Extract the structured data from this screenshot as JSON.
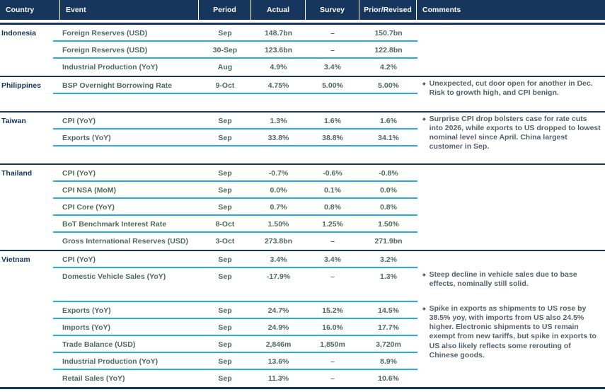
{
  "colors": {
    "navy": "#17365D",
    "cyan": "#29ABE2",
    "data_text": "#4E6A60",
    "comment_text": "#58606A",
    "header_text": "#FFFFFF"
  },
  "icons": {
    "bullet": "◆"
  },
  "header": {
    "columns": [
      {
        "label": "Country"
      },
      {
        "label": "Event"
      },
      {
        "label": "Period"
      },
      {
        "label": "Actual"
      },
      {
        "label": "Survey"
      },
      {
        "label": "Prior/Revised"
      },
      {
        "label": "Comments"
      }
    ]
  },
  "sections": [
    {
      "country": "Indonesia",
      "rows": [
        {
          "event": "Foreign Reserves (USD)",
          "period": "Sep",
          "actual": "148.7bn",
          "survey": "–",
          "prior": "150.7bn"
        },
        {
          "event": "Foreign Reserves (USD)",
          "period": "30-Sep",
          "actual": "123.6bn",
          "survey": "–",
          "prior": "122.8bn"
        },
        {
          "event": "Industrial Production (YoY)",
          "period": "Aug",
          "actual": "4.9%",
          "survey": "3.4%",
          "prior": "4.2%"
        }
      ]
    },
    {
      "country": "Philippines",
      "rows": [
        {
          "event": "BSP Overnight Borrowing Rate",
          "period": "9-Oct",
          "actual": "4.75%",
          "survey": "5.00%",
          "prior": "5.00%",
          "comment": "Unexpected, cut door open for another in Dec. Risk to growth high, and CPI benign."
        }
      ]
    },
    {
      "country": "Taiwan",
      "rows": [
        {
          "event": "CPI (YoY)",
          "period": "Sep",
          "actual": "1.3%",
          "survey": "1.6%",
          "prior": "1.6%",
          "comment": "Surprise CPI drop bolsters case for rate cuts into 2026, while exports to US dropped to lowest nominal level since April. China largest customer in Sep."
        },
        {
          "event": "Exports (YoY)",
          "period": "Sep",
          "actual": "33.8%",
          "survey": "38.8%",
          "prior": "34.1%"
        }
      ]
    },
    {
      "country": "Thailand",
      "rows": [
        {
          "event": "CPI (YoY)",
          "period": "Sep",
          "actual": "-0.7%",
          "survey": "-0.6%",
          "prior": "-0.8%"
        },
        {
          "event": "CPI NSA (MoM)",
          "period": "Sep",
          "actual": "0.0%",
          "survey": "0.1%",
          "prior": "0.0%"
        },
        {
          "event": "CPI Core (YoY)",
          "period": "Sep",
          "actual": "0.7%",
          "survey": "0.8%",
          "prior": "0.8%"
        },
        {
          "event": "BoT Benchmark Interest Rate",
          "period": "8-Oct",
          "actual": "1.50%",
          "survey": "1.25%",
          "prior": "1.50%"
        },
        {
          "event": "Gross International Reserves (USD)",
          "period": "3-Oct",
          "actual": "273.8bn",
          "survey": "–",
          "prior": "271.9bn"
        }
      ]
    },
    {
      "country": "Vietnam",
      "rows": [
        {
          "event": "CPI (YoY)",
          "period": "Sep",
          "actual": "3.4%",
          "survey": "3.4%",
          "prior": "3.2%"
        },
        {
          "event": "Domestic Vehicle Sales (YoY)",
          "period": "Sep",
          "actual": "-17.9%",
          "survey": "–",
          "prior": "1.3%",
          "comment": "Steep decline in vehicle sales due to base effects, nominally still solid."
        },
        {
          "event": "Exports (YoY)",
          "period": "Sep",
          "actual": "24.7%",
          "survey": "15.2%",
          "prior": "14.5%",
          "comment": "Spike in exports as shipments to US rose by 38.5% yoy, with imports from US also 24.5% higher. Electronic shipments to US remain exempt from new tariffs, but spike in exports to US also likely reflects some rerouting of Chinese goods."
        },
        {
          "event": "Imports (YoY)",
          "period": "Sep",
          "actual": "24.9%",
          "survey": "16.0%",
          "prior": "17.7%"
        },
        {
          "event": "Trade Balance (USD)",
          "period": "Sep",
          "actual": "2,846m",
          "survey": "1,850m",
          "prior": "3,720m"
        },
        {
          "event": "Industrial Production (YoY)",
          "period": "Sep",
          "actual": "13.6%",
          "survey": "–",
          "prior": "8.9%"
        },
        {
          "event": "Retail Sales (YoY)",
          "period": "Sep",
          "actual": "11.3%",
          "survey": "–",
          "prior": "10.6%"
        }
      ]
    }
  ]
}
